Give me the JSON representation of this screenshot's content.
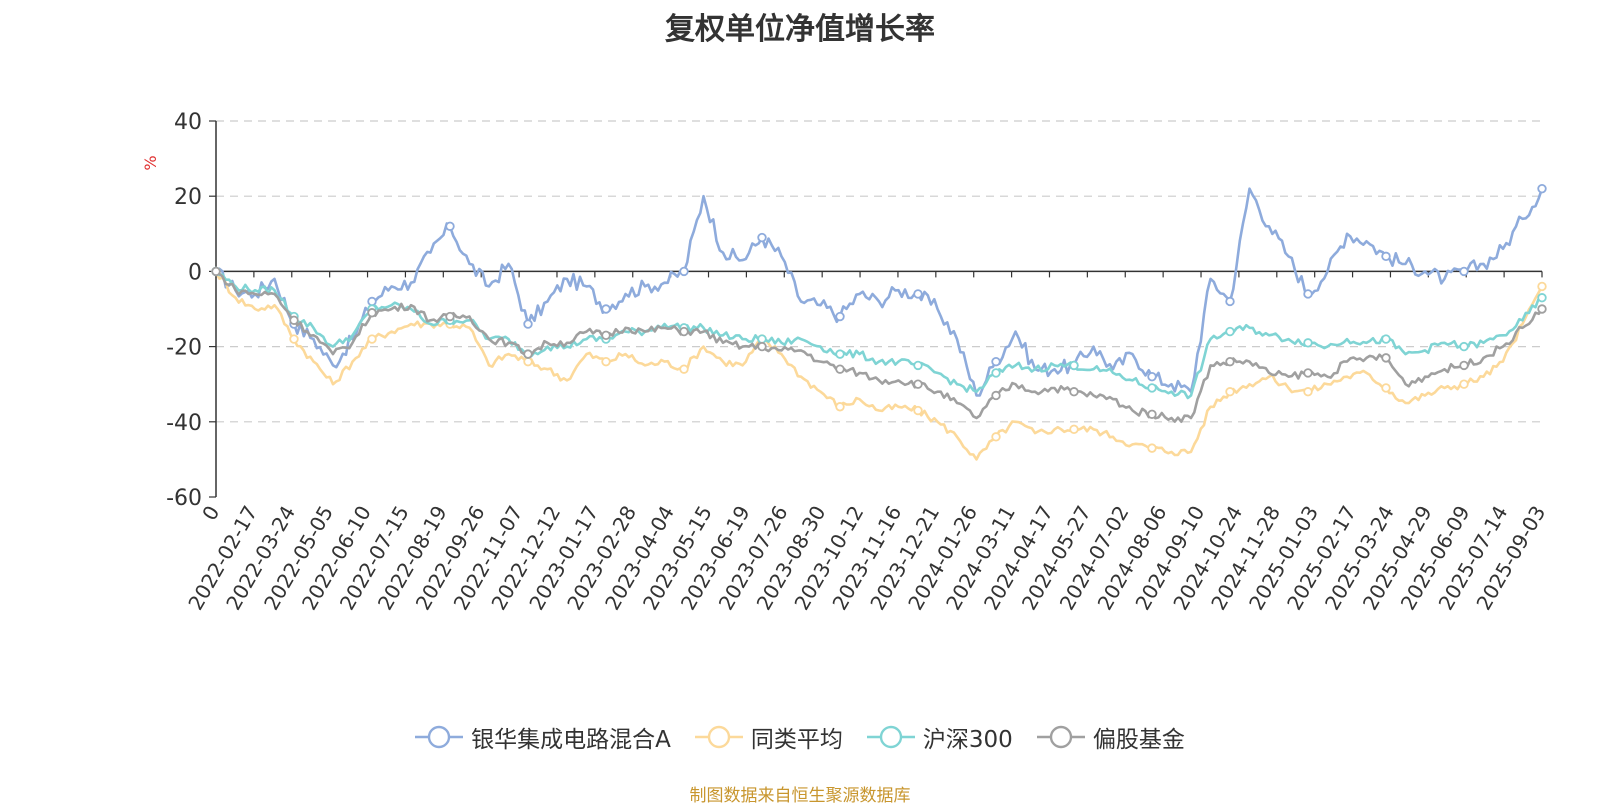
{
  "chart_data": {
    "type": "line",
    "title": "复权单位净值增长率",
    "ylabel": "%",
    "ylim": [
      -60,
      40
    ],
    "yticks": [
      40,
      20,
      0,
      -20,
      -40,
      -60
    ],
    "x_tick_labels": [
      "0",
      "2022-02-17",
      "2022-03-24",
      "2022-05-05",
      "2022-06-10",
      "2022-07-15",
      "2022-08-19",
      "2022-09-26",
      "2022-11-07",
      "2022-12-12",
      "2023-01-17",
      "2023-02-28",
      "2023-04-04",
      "2023-05-15",
      "2023-06-19",
      "2023-07-26",
      "2023-08-30",
      "2023-10-12",
      "2023-11-16",
      "2023-12-21",
      "2024-01-26",
      "2024-03-11",
      "2024-04-17",
      "2024-05-27",
      "2024-07-02",
      "2024-08-06",
      "2024-09-10",
      "2024-10-24",
      "2024-11-28",
      "2025-01-03",
      "2025-02-17",
      "2025-03-24",
      "2025-04-29",
      "2025-06-09",
      "2025-07-14",
      "2025-09-03"
    ],
    "grid": true,
    "legend_position": "bottom",
    "series": [
      {
        "name": "银华集成电路混合A",
        "color": "#8eabdc",
        "values": [
          0,
          -5,
          -6,
          -2,
          -14,
          -18,
          -25,
          -18,
          -8,
          -4,
          -3,
          5,
          12,
          2,
          -4,
          2,
          -14,
          -8,
          -2,
          -4,
          -10,
          -6,
          -4,
          -3,
          0,
          20,
          5,
          3,
          9,
          4,
          -8,
          -9,
          -12,
          -6,
          -8,
          -5,
          -6,
          -10,
          -18,
          -33,
          -24,
          -16,
          -26,
          -26,
          -25,
          -20,
          -26,
          -22,
          -28,
          -30,
          -32,
          -2,
          -8,
          22,
          12,
          4,
          -6,
          0,
          10,
          8,
          4,
          2,
          0,
          -2,
          0,
          2,
          6,
          14,
          22
        ]
      },
      {
        "name": "同类平均",
        "color": "#fcd99a",
        "values": [
          0,
          -7,
          -10,
          -9,
          -18,
          -24,
          -30,
          -24,
          -18,
          -16,
          -14,
          -14,
          -14,
          -15,
          -25,
          -22,
          -24,
          -26,
          -29,
          -22,
          -24,
          -22,
          -25,
          -24,
          -26,
          -20,
          -24,
          -25,
          -18,
          -22,
          -28,
          -32,
          -36,
          -34,
          -37,
          -36,
          -37,
          -40,
          -44,
          -50,
          -44,
          -40,
          -43,
          -42,
          -42,
          -42,
          -44,
          -46,
          -47,
          -48,
          -48,
          -36,
          -32,
          -30,
          -28,
          -31,
          -32,
          -30,
          -28,
          -27,
          -31,
          -35,
          -33,
          -31,
          -30,
          -28,
          -24,
          -14,
          -4
        ]
      },
      {
        "name": "沪深300",
        "color": "#7fd4d4",
        "values": [
          0,
          -4,
          -5,
          -5,
          -12,
          -15,
          -20,
          -17,
          -10,
          -9,
          -10,
          -14,
          -13,
          -13,
          -18,
          -18,
          -22,
          -20,
          -20,
          -18,
          -18,
          -16,
          -16,
          -14,
          -15,
          -15,
          -17,
          -18,
          -18,
          -19,
          -18,
          -20,
          -22,
          -22,
          -24,
          -24,
          -25,
          -27,
          -30,
          -32,
          -27,
          -25,
          -26,
          -25,
          -25,
          -26,
          -27,
          -29,
          -31,
          -32,
          -33,
          -18,
          -16,
          -15,
          -17,
          -18,
          -19,
          -20,
          -18,
          -19,
          -18,
          -22,
          -21,
          -19,
          -20,
          -19,
          -17,
          -13,
          -7
        ]
      },
      {
        "name": "偏股基金",
        "color": "#a0a0a0",
        "values": [
          0,
          -5,
          -6,
          -6,
          -13,
          -17,
          -22,
          -19,
          -11,
          -10,
          -9,
          -13,
          -12,
          -12,
          -18,
          -19,
          -22,
          -19,
          -19,
          -16,
          -17,
          -15,
          -16,
          -15,
          -16,
          -16,
          -19,
          -20,
          -20,
          -21,
          -21,
          -24,
          -26,
          -27,
          -29,
          -29,
          -30,
          -32,
          -35,
          -39,
          -33,
          -30,
          -32,
          -31,
          -32,
          -33,
          -34,
          -37,
          -38,
          -39,
          -39,
          -25,
          -24,
          -24,
          -27,
          -28,
          -27,
          -28,
          -24,
          -23,
          -23,
          -30,
          -28,
          -26,
          -25,
          -23,
          -20,
          -15,
          -10
        ]
      }
    ]
  },
  "source_note": "制图数据来自恒生聚源数据库"
}
